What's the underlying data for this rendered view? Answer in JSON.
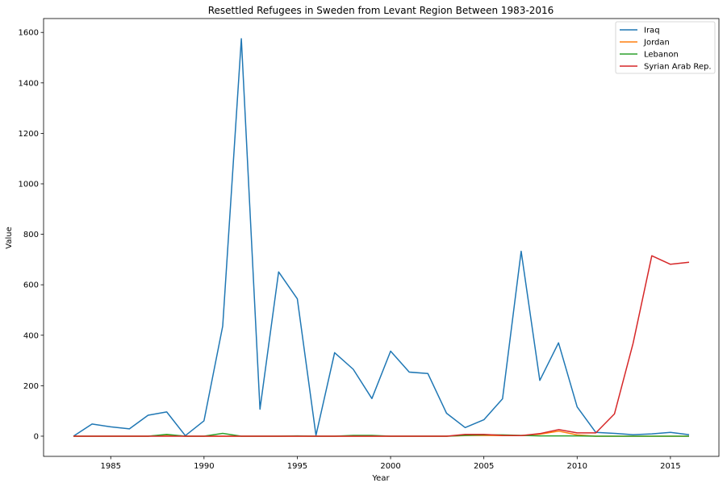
{
  "chart_data": {
    "type": "line",
    "title": "Resettled Refugees in Sweden from Levant Region Between 1983-2016",
    "xlabel": "Year",
    "ylabel": "Value",
    "xlim": [
      1981.4,
      2017.6
    ],
    "ylim": [
      -80,
      1655
    ],
    "xticks": [
      1985,
      1990,
      1995,
      2000,
      2005,
      2010,
      2015
    ],
    "yticks": [
      0,
      200,
      400,
      600,
      800,
      1000,
      1200,
      1400,
      1600
    ],
    "grid": false,
    "legend_position": "top-right",
    "x": [
      1983,
      1984,
      1985,
      1986,
      1987,
      1988,
      1989,
      1990,
      1991,
      1992,
      1993,
      1994,
      1995,
      1996,
      1997,
      1998,
      1999,
      2000,
      2001,
      2002,
      2003,
      2004,
      2005,
      2006,
      2007,
      2008,
      2009,
      2010,
      2011,
      2012,
      2013,
      2014,
      2015,
      2016
    ],
    "series": [
      {
        "name": "Iraq",
        "color": "#1f77b4",
        "values": [
          0,
          48,
          37,
          29,
          83,
          96,
          2,
          61,
          436,
          1575,
          107,
          651,
          544,
          3,
          331,
          265,
          149,
          337,
          254,
          248,
          91,
          34,
          65,
          148,
          733,
          221,
          370,
          116,
          15,
          11,
          6,
          9,
          15,
          6
        ]
      },
      {
        "name": "Jordan",
        "color": "#ff7f0e",
        "values": [
          0,
          0,
          0,
          0,
          0,
          5,
          0,
          0,
          0,
          0,
          0,
          0,
          0,
          0,
          0,
          0,
          0,
          0,
          0,
          0,
          0,
          2,
          3,
          2,
          2,
          8,
          20,
          5,
          0,
          0,
          0,
          0,
          0,
          0
        ]
      },
      {
        "name": "Lebanon",
        "color": "#2ca02c",
        "values": [
          0,
          0,
          0,
          0,
          0,
          7,
          0,
          0,
          11,
          0,
          0,
          0,
          1,
          0,
          0,
          3,
          3,
          0,
          0,
          0,
          0,
          3,
          5,
          5,
          3,
          1,
          1,
          1,
          0,
          0,
          0,
          0,
          0,
          0
        ]
      },
      {
        "name": "Syrian Arab Rep.",
        "color": "#d62728",
        "values": [
          0,
          0,
          0,
          0,
          0,
          0,
          0,
          0,
          0,
          0,
          0,
          0,
          0,
          0,
          0,
          0,
          0,
          0,
          0,
          0,
          0,
          7,
          7,
          3,
          2,
          10,
          26,
          13,
          13,
          88,
          368,
          715,
          681,
          689
        ]
      }
    ]
  }
}
